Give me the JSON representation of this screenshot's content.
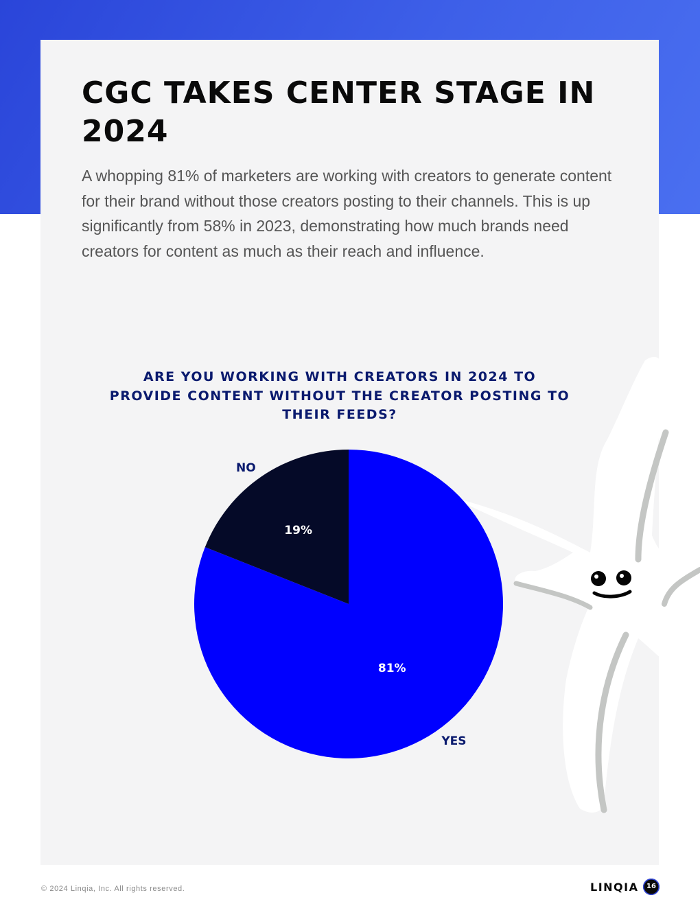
{
  "page": {
    "title": "CGC TAKES CENTER STAGE IN 2024",
    "body": "A whopping 81% of marketers are working with creators to generate content for their brand without those creators posting to their channels. This is up significantly from 58% in 2023, demonstrating how much brands need creators for content as much as their reach and influence.",
    "footer_copyright": "© 2024 Linqia, Inc. All rights reserved.",
    "logo_text": "LINQIA",
    "page_number": "16"
  },
  "chart_data": {
    "type": "pie",
    "title": "ARE YOU WORKING WITH CREATORS IN 2024 TO PROVIDE CONTENT WITHOUT THE CREATOR POSTING TO THEIR FEEDS?",
    "categories": [
      "YES",
      "NO"
    ],
    "values": [
      81,
      19
    ],
    "value_labels": [
      "81%",
      "19%"
    ],
    "colors": [
      "#0000ff",
      "#050a28"
    ],
    "label_color": "#0a1a6e",
    "start": "12 o'clock, clockwise",
    "legend": "none"
  }
}
